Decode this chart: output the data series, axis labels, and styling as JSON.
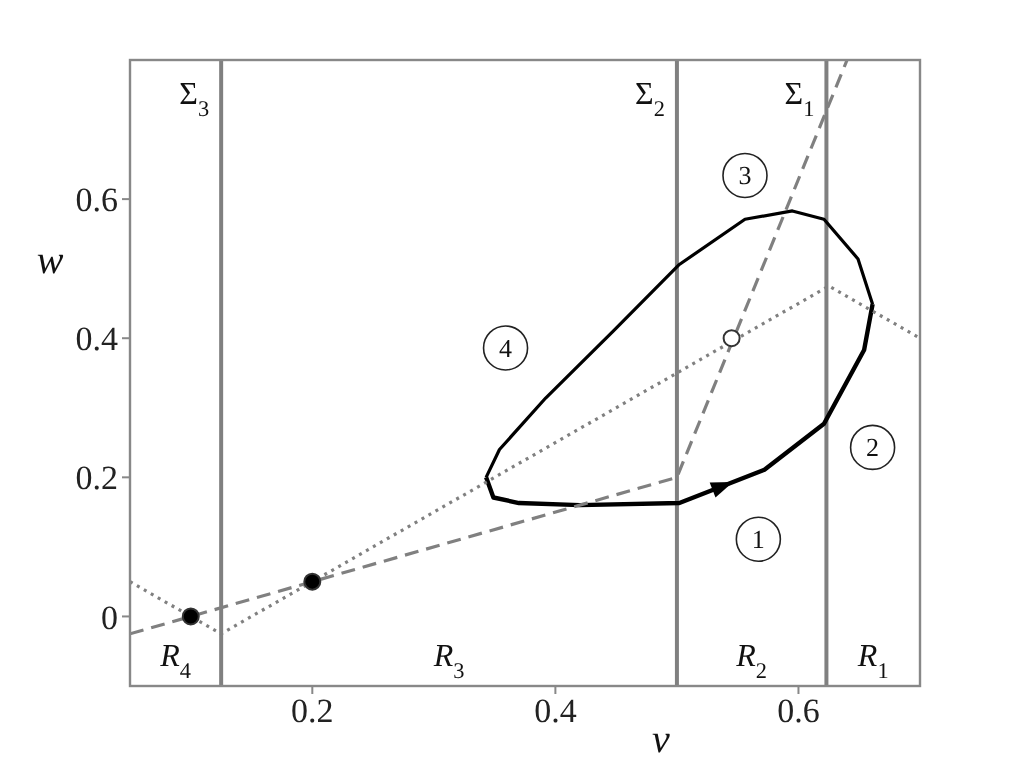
{
  "chart_data": {
    "type": "line",
    "xlabel": "v",
    "ylabel": "w",
    "xlim": [
      0.05,
      0.7
    ],
    "ylim": [
      -0.1,
      0.8
    ],
    "xticks": [
      0.2,
      0.4,
      0.6
    ],
    "yticks": [
      0,
      0.2,
      0.4,
      0.6
    ],
    "series": [
      {
        "color": "#000000",
        "line_style": "solid",
        "marker": "none",
        "x": [
          0.343,
          0.349,
          0.37,
          0.42,
          0.502,
          0.572,
          0.621,
          0.654,
          0.661
        ],
        "values": [
          0.2,
          0.171,
          0.163,
          0.16,
          0.163,
          0.211,
          0.277,
          0.383,
          0.449
        ]
      },
      {
        "color": "#000000",
        "line_style": "solid",
        "marker": "none",
        "x": [
          0.661,
          0.649,
          0.621,
          0.595,
          0.556,
          0.502,
          0.448,
          0.392,
          0.354,
          0.343
        ],
        "values": [
          0.449,
          0.514,
          0.571,
          0.583,
          0.571,
          0.506,
          0.411,
          0.314,
          0.24,
          0.2
        ]
      },
      {
        "color": "#808080",
        "line_style": "dashed",
        "marker": "none",
        "x": [
          0.05,
          0.5,
          0.64
        ],
        "values": [
          -0.025,
          0.2,
          0.8
        ]
      },
      {
        "color": "#808080",
        "line_style": "dotted",
        "marker": "none",
        "x": [
          0.05,
          0.125,
          0.625,
          0.7
        ],
        "values": [
          0.05,
          -0.025,
          0.475,
          0.4
        ]
      },
      {
        "type": "scatter",
        "marker": "circle",
        "colors": [
          "#000000",
          "#000000",
          "#ffffff"
        ],
        "x": [
          0.1,
          0.2,
          0.545
        ],
        "values": [
          0,
          0.05,
          0.4
        ]
      }
    ],
    "ref_lines": [
      {
        "axis": "x",
        "value": 0.125,
        "label": "Σ$_{3}$",
        "color": "#808080"
      },
      {
        "axis": "x",
        "value": 0.5,
        "label": "Σ$_{2}$",
        "color": "#808080"
      },
      {
        "axis": "x",
        "value": 0.623,
        "label": "Σ$_{1}$",
        "color": "#808080"
      }
    ],
    "annotations": [
      {
        "text": "1",
        "x": 0.567,
        "y": 0.111
      },
      {
        "text": "2",
        "x": 0.661,
        "y": 0.243
      },
      {
        "text": "3",
        "x": 0.556,
        "y": 0.634
      },
      {
        "text": "4",
        "x": 0.359,
        "y": 0.386
      },
      "R$_{4}$",
      "R$_{3}$",
      "R$_{2}$",
      "R$_{1}$"
    ]
  }
}
